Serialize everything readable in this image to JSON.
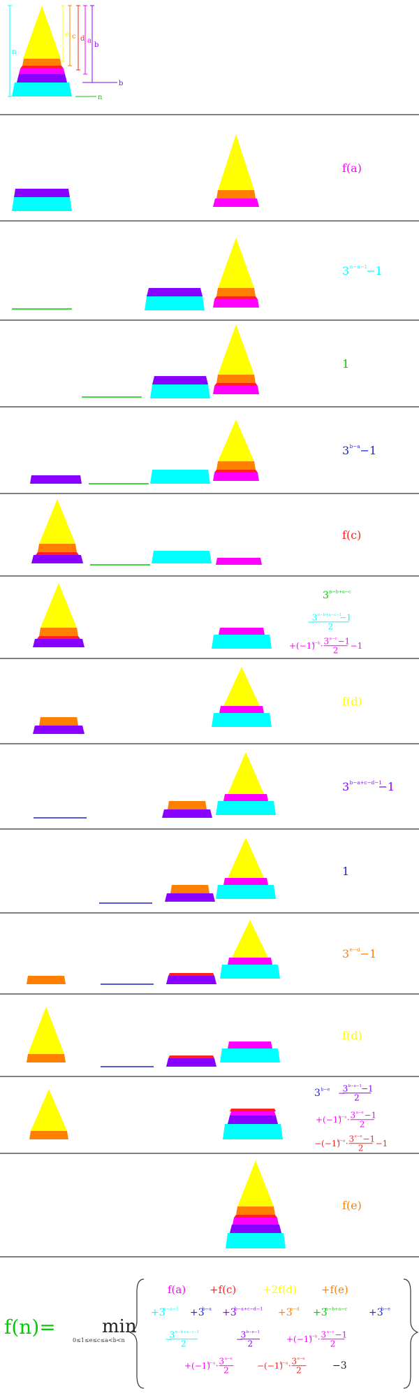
{
  "colors": {
    "yellow": "#ffff00",
    "orange": "#ff8000",
    "red": "#ff2020",
    "magenta": "#ff00ff",
    "purple": "#8800ff",
    "blue": "#2222cc",
    "cyan": "#00ffff",
    "green": "#00cc00",
    "separator": "#000000"
  },
  "legend": {
    "labels": [
      "n",
      "e",
      "c",
      "d",
      "a",
      "b",
      "b",
      "n"
    ]
  },
  "steps": [
    {
      "formula": {
        "base": "f(a)"
      }
    },
    {
      "formula": {
        "base": "3",
        "exp": "n−a−1",
        "tail": "−1"
      }
    },
    {
      "formula": {
        "base": "1"
      }
    },
    {
      "formula": {
        "base": "3",
        "exp": "b−a",
        "tail": "−1"
      }
    },
    {
      "formula": {
        "base": "f(c)"
      }
    },
    {
      "formula_lines": [
        {
          "base": "3",
          "exp": "n−b+a−c"
        },
        {
          "prefix": "−",
          "num_base": "3",
          "num_exp": "n−b+a−c−1",
          "num_tail": "−1",
          "den": "2"
        },
        {
          "prefix": "+(−1)",
          "prefix_exp": "n−b",
          "mid": "·",
          "num_base": "3",
          "num_exp": "a−c",
          "num_tail": "−1",
          "den": "2",
          "tail": "−1"
        }
      ]
    },
    {
      "formula": {
        "base": "f(d)"
      }
    },
    {
      "formula": {
        "base": "3",
        "exp": "b−a+c−d−1",
        "tail": "−1"
      }
    },
    {
      "formula": {
        "base": "1"
      }
    },
    {
      "formula": {
        "base": "3",
        "exp": "e−d",
        "tail": "−1"
      }
    },
    {
      "formula": {
        "base": "f(d)"
      }
    },
    {
      "formula_lines": [
        {
          "base": "3",
          "exp": "b−e",
          "prefix": "−",
          "num_base": "3",
          "num_exp": "b−e−1",
          "num_tail": "−1",
          "den": "2"
        },
        {
          "prefix": "+(−1)",
          "prefix_exp": "b−a",
          "mid": "·",
          "num_base": "3",
          "num_exp": "a−e",
          "num_tail": "−1",
          "den": "2"
        },
        {
          "prefix": "−(−1)",
          "prefix_exp": "b−a",
          "mid": "·",
          "num_base": "3",
          "num_exp": "e−e",
          "num_tail": "−1",
          "den": "2",
          "tail": "−1"
        }
      ]
    },
    {
      "formula": {
        "base": "f(e)"
      }
    }
  ],
  "final": {
    "lhs": "f(n)=",
    "op": "min",
    "subscript": "0≤1≤e≤c≤a<b<n",
    "line1": [
      "f(a)",
      "+f(c)",
      "+2f(d)",
      "+f(e)"
    ],
    "line2": [
      {
        "base": "+3",
        "exp": "n−a−1"
      },
      {
        "base": "+3",
        "exp": "b−a"
      },
      {
        "base": "+3",
        "exp": "b−a+c−d−1"
      },
      {
        "base": "+3",
        "exp": "e−d"
      },
      {
        "base": "+3",
        "exp": "n−b+a−c"
      },
      {
        "base": "+3",
        "exp": "b−e"
      }
    ],
    "line3": [
      {
        "prefix": "−",
        "num_base": "3",
        "num_exp": "n−b+a−c−1",
        "den": "2"
      },
      {
        "prefix": "−",
        "num_base": "3",
        "num_exp": "b−e−1",
        "den": "2"
      },
      {
        "prefix": "+(−1)",
        "prefix_exp": "n−b",
        "mid": "·",
        "num_base": "3",
        "num_exp": "a−c",
        "num_tail": "−1",
        "den": "2"
      }
    ],
    "line4": [
      {
        "prefix": "+(−1)",
        "prefix_exp": "b−a",
        "mid": "·",
        "num_base": "3",
        "num_exp": "a−e",
        "den": "2"
      },
      {
        "prefix": "−(−1)",
        "prefix_exp": "b−a",
        "mid": "·",
        "num_base": "3",
        "num_exp": "e−e",
        "den": "2"
      },
      {
        "text": "−3"
      }
    ]
  }
}
